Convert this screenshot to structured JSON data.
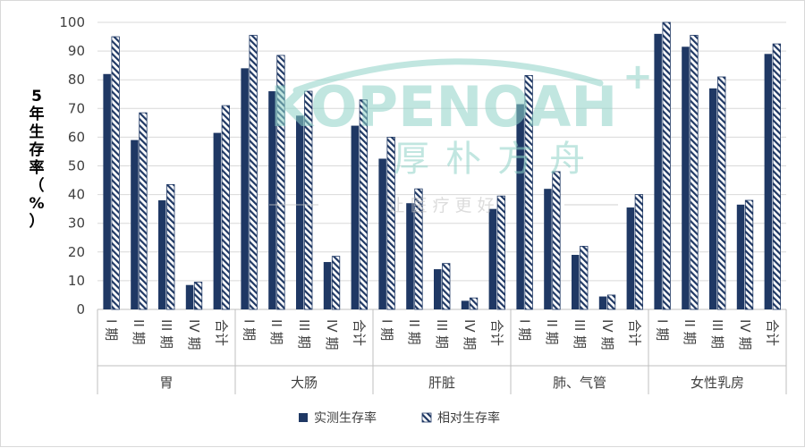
{
  "chart_data": {
    "type": "bar",
    "ylabel": "5年生存率（%）",
    "ylim": [
      0,
      100
    ],
    "yticks": [
      0,
      10,
      20,
      30,
      40,
      50,
      60,
      70,
      80,
      90,
      100
    ],
    "grid": true,
    "legend_position": "bottom",
    "groups": [
      {
        "name": "胃",
        "categories": [
          "I 期",
          "II 期",
          "III 期",
          "IV 期",
          "合计"
        ]
      },
      {
        "name": "大肠",
        "categories": [
          "I 期",
          "II 期",
          "III 期",
          "IV 期",
          "合计"
        ]
      },
      {
        "name": "肝脏",
        "categories": [
          "I 期",
          "II 期",
          "III 期",
          "IV 期",
          "合计"
        ]
      },
      {
        "name": "肺、气管",
        "categories": [
          "I 期",
          "II 期",
          "III 期",
          "IV 期",
          "合计"
        ]
      },
      {
        "name": "女性乳房",
        "categories": [
          "I 期",
          "II 期",
          "III 期",
          "IV 期",
          "合计"
        ]
      }
    ],
    "series": [
      {
        "name": "实测生存率",
        "color": "#1f3864",
        "values": [
          82,
          59,
          38,
          8.5,
          61.5,
          84,
          76,
          67.5,
          16.5,
          64,
          52.5,
          37,
          14,
          3,
          35,
          71.5,
          42,
          19,
          4.5,
          35.5,
          96,
          91.5,
          77,
          36.5,
          89
        ]
      },
      {
        "name": "相对生存率",
        "color": "#1f3864",
        "pattern": "hatch",
        "values": [
          95,
          68.5,
          43.5,
          9.5,
          71,
          95.5,
          88.5,
          76,
          18.5,
          73,
          60,
          42,
          16,
          4,
          39.5,
          81.5,
          48,
          22,
          5,
          40,
          100,
          95.5,
          81,
          38,
          92.5
        ]
      }
    ]
  },
  "watermark": {
    "brand": "KOPENOAH",
    "plus": "+",
    "cn_name": "厚朴方舟",
    "slogan": "让  医  疗  更  好"
  }
}
